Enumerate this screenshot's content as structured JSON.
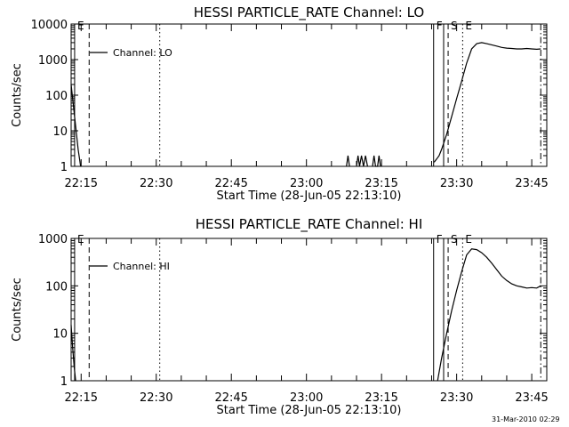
{
  "timestamp": "31-Mar-2010 02:29",
  "chart_data": [
    {
      "type": "line",
      "title": "HESSI PARTICLE_RATE Channel: LO",
      "xlabel": "Start Time (28-Jun-05 22:13:10)",
      "ylabel": "Counts/sec",
      "scale": "log",
      "ylim": [
        1,
        10000
      ],
      "yticks": [
        "1",
        "10",
        "100",
        "1000",
        "10000"
      ],
      "xlim_min": [
        0,
        95
      ],
      "xticks": [
        {
          "min": 2,
          "label": "22:15"
        },
        {
          "min": 17,
          "label": "22:30"
        },
        {
          "min": 32,
          "label": "22:45"
        },
        {
          "min": 47,
          "label": "23:00"
        },
        {
          "min": 62,
          "label": "23:15"
        },
        {
          "min": 77,
          "label": "23:30"
        },
        {
          "min": 92,
          "label": "23:45"
        }
      ],
      "legend": "Channel: LO",
      "legend_position": "top-left",
      "markers": [
        {
          "label": "E",
          "min": 0.7,
          "style": "solid"
        },
        {
          "label": "",
          "min": 3.6,
          "style": "dashed"
        },
        {
          "label": "",
          "min": 17.7,
          "style": "dotted"
        },
        {
          "label": "F",
          "min": 72.4,
          "style": "solid"
        },
        {
          "label": "",
          "min": 74.4,
          "style": "solid"
        },
        {
          "label": "S",
          "min": 75.3,
          "style": "dashed"
        },
        {
          "label": "E",
          "min": 78.2,
          "style": "dotted"
        },
        {
          "label": "",
          "min": 93.8,
          "style": "dashdot"
        }
      ],
      "series": [
        {
          "x": [
            0,
            0.7,
            1.4,
            1.9
          ],
          "y": [
            200,
            25,
            3,
            1
          ]
        },
        {
          "x": [
            55,
            55.3,
            55.6
          ],
          "y": [
            1,
            2,
            1
          ]
        },
        {
          "x": [
            57,
            57.3,
            57.6,
            58,
            58.4,
            58.8,
            59.2
          ],
          "y": [
            1,
            2,
            1,
            2,
            1,
            2,
            1
          ]
        },
        {
          "x": [
            60.2,
            60.5,
            60.8,
            61.2,
            61.5,
            61.8
          ],
          "y": [
            1,
            2,
            1,
            1,
            2,
            1
          ]
        },
        {
          "x": [
            72.5,
            73,
            73.5,
            74,
            75,
            76,
            77,
            78,
            79,
            80,
            81,
            82,
            83,
            84,
            85,
            86,
            87,
            88,
            89,
            90,
            91,
            92,
            93,
            93.8
          ],
          "y": [
            1.3,
            1.6,
            2,
            3,
            8,
            25,
            80,
            250,
            800,
            2000,
            2800,
            3000,
            2800,
            2600,
            2400,
            2200,
            2100,
            2050,
            2000,
            2000,
            2050,
            2000,
            1950,
            2000
          ]
        }
      ]
    },
    {
      "type": "line",
      "title": "HESSI PARTICLE_RATE Channel: HI",
      "xlabel": "Start Time (28-Jun-05 22:13:10)",
      "ylabel": "Counts/sec",
      "scale": "log",
      "ylim": [
        1,
        1000
      ],
      "yticks": [
        "1",
        "10",
        "100",
        "1000"
      ],
      "xlim_min": [
        0,
        95
      ],
      "xticks": [
        {
          "min": 2,
          "label": "22:15"
        },
        {
          "min": 17,
          "label": "22:30"
        },
        {
          "min": 32,
          "label": "22:45"
        },
        {
          "min": 47,
          "label": "23:00"
        },
        {
          "min": 62,
          "label": "23:15"
        },
        {
          "min": 77,
          "label": "23:30"
        },
        {
          "min": 92,
          "label": "23:45"
        }
      ],
      "legend": "Channel: HI",
      "legend_position": "top-left",
      "markers": [
        {
          "label": "E",
          "min": 0.7,
          "style": "solid"
        },
        {
          "label": "",
          "min": 3.6,
          "style": "dashed"
        },
        {
          "label": "",
          "min": 17.7,
          "style": "dotted"
        },
        {
          "label": "F",
          "min": 72.4,
          "style": "solid"
        },
        {
          "label": "",
          "min": 74.4,
          "style": "solid"
        },
        {
          "label": "S",
          "min": 75.3,
          "style": "dashed"
        },
        {
          "label": "E",
          "min": 78.2,
          "style": "dotted"
        },
        {
          "label": "",
          "min": 93.8,
          "style": "dashdot"
        }
      ],
      "series": [
        {
          "x": [
            0,
            0.3,
            0.6,
            0.9
          ],
          "y": [
            15,
            5,
            2,
            1
          ]
        },
        {
          "x": [
            73.2,
            74,
            75,
            76,
            77,
            78,
            79,
            80,
            81,
            82,
            83,
            84,
            85,
            86,
            87,
            88,
            89,
            90,
            91,
            92,
            93,
            93.8
          ],
          "y": [
            1,
            3,
            10,
            30,
            80,
            200,
            450,
            600,
            580,
            500,
            400,
            300,
            220,
            160,
            130,
            110,
            100,
            95,
            90,
            92,
            90,
            100
          ]
        }
      ]
    }
  ]
}
